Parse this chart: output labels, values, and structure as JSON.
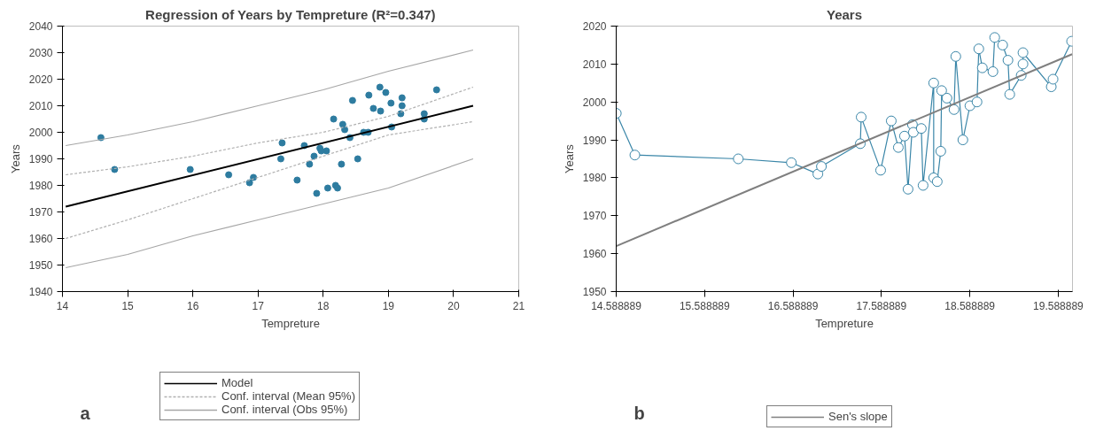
{
  "chart_data": [
    {
      "type": "scatter",
      "title": "Regression of Years by Tempreture (R²=0.347)",
      "xlabel": "Tempreture",
      "ylabel": "Years",
      "xlim": [
        14,
        21
      ],
      "xticks": [
        14,
        15,
        16,
        17,
        18,
        19,
        20,
        21
      ],
      "ylim": [
        1940,
        2040
      ],
      "yticks": [
        1940,
        1950,
        1960,
        1970,
        1980,
        1990,
        2000,
        2010,
        2020,
        2030,
        2040
      ],
      "grid": false,
      "legend": "bottom",
      "annotations": [
        "a"
      ],
      "series": [
        {
          "color": "#2e7ca0",
          "marker": "circle",
          "x": [
            14.59,
            14.8,
            15.96,
            16.55,
            16.87,
            16.93,
            17.35,
            17.37,
            17.6,
            17.71,
            17.79,
            17.86,
            17.9,
            17.95,
            17.97,
            18.05,
            18.07,
            18.16,
            18.19,
            18.22,
            18.28,
            18.3,
            18.33,
            18.41,
            18.45,
            18.53,
            18.62,
            18.69,
            18.7,
            18.77,
            18.87,
            18.88,
            18.96,
            19.04,
            19.05,
            19.19,
            19.21,
            19.21,
            19.55,
            19.55,
            19.74
          ],
          "values": [
            1998,
            1986,
            1986,
            1984,
            1981,
            1983,
            1990,
            1996,
            1982,
            1995,
            1988,
            1991,
            1977,
            1994,
            1993,
            1993,
            1979,
            2005,
            1980,
            1979,
            1988,
            2003,
            2001,
            1998,
            2012,
            1990,
            2000,
            2000,
            2014,
            2009,
            2017,
            2008,
            2015,
            2011,
            2002,
            2007,
            2013,
            2010,
            2007,
            2005,
            2016
          ]
        },
        {
          "type": "line",
          "name": "Model",
          "color": "#000000",
          "line_style": "solid",
          "x": [
            14.05,
            20.3
          ],
          "values": [
            1972,
            2010
          ]
        },
        {
          "type": "line",
          "name": "Conf. interval (Mean 95%)",
          "color": "#b0b0b0",
          "line_style": "dashed",
          "x": [
            14.05,
            15,
            16,
            17,
            18,
            19,
            20.3
          ],
          "values": [
            1984,
            1987,
            1991,
            1996,
            2000,
            2006,
            2017
          ]
        },
        {
          "type": "line",
          "color": "#b0b0b0",
          "line_style": "dashed",
          "x": [
            14.05,
            15,
            16,
            17,
            18,
            19,
            20.3
          ],
          "values": [
            1960,
            1967,
            1975,
            1983,
            1991,
            1999,
            2004
          ]
        },
        {
          "type": "line",
          "name": "Conf. interval (Obs 95%)",
          "color": "#a6a6a6",
          "line_style": "solid",
          "x": [
            14.05,
            15,
            16,
            17,
            18,
            19,
            20.3
          ],
          "values": [
            1995,
            1999,
            2004,
            2010,
            2016,
            2023,
            2031
          ]
        },
        {
          "type": "line",
          "color": "#a6a6a6",
          "line_style": "solid",
          "x": [
            14.05,
            15,
            16,
            17,
            18,
            19,
            20.3
          ],
          "values": [
            1949,
            1954,
            1961,
            1967,
            1973,
            1979,
            1990
          ]
        }
      ]
    },
    {
      "type": "line",
      "title": "Years",
      "xlabel": "Tempreture",
      "ylabel": "Years",
      "xlim": [
        14.588889,
        19.75
      ],
      "xticks": [
        14.588889,
        15.588889,
        16.588889,
        17.588889,
        18.588889,
        19.588889
      ],
      "ylim": [
        1950,
        2020
      ],
      "yticks": [
        1950,
        1960,
        1970,
        1980,
        1990,
        2000,
        2010,
        2020
      ],
      "grid": false,
      "legend": "bottom",
      "annotations": [
        "b"
      ],
      "series": [
        {
          "color": "#3a86a8",
          "marker": "circle",
          "x": [
            14.59,
            14.8,
            15.97,
            16.57,
            16.87,
            16.91,
            17.35,
            17.36,
            17.58,
            17.7,
            17.78,
            17.85,
            17.89,
            17.94,
            17.95,
            18.04,
            18.06,
            18.18,
            18.18,
            18.22,
            18.26,
            18.27,
            18.33,
            18.41,
            18.43,
            18.51,
            18.59,
            18.67,
            18.69,
            18.73,
            18.85,
            18.87,
            18.96,
            19.02,
            19.04,
            19.17,
            19.19,
            19.19,
            19.51,
            19.53,
            19.74
          ],
          "values": [
            1997,
            1986,
            1985,
            1984,
            1981,
            1983,
            1989,
            1996,
            1982,
            1995,
            1988,
            1991,
            1977,
            1994,
            1992,
            1993,
            1978,
            2005,
            1980,
            1979,
            1987,
            2003,
            2001,
            1998,
            2012,
            1990,
            1999,
            2000,
            2014,
            2009,
            2008,
            2017,
            2015,
            2011,
            2002,
            2007,
            2010,
            2013,
            2004,
            2006,
            2016
          ]
        },
        {
          "name": "Sen's slope",
          "color": "#7f7f7f",
          "line_style": "solid",
          "x": [
            14.588889,
            19.746
          ],
          "values": [
            1962,
            2012.6
          ]
        }
      ]
    }
  ]
}
